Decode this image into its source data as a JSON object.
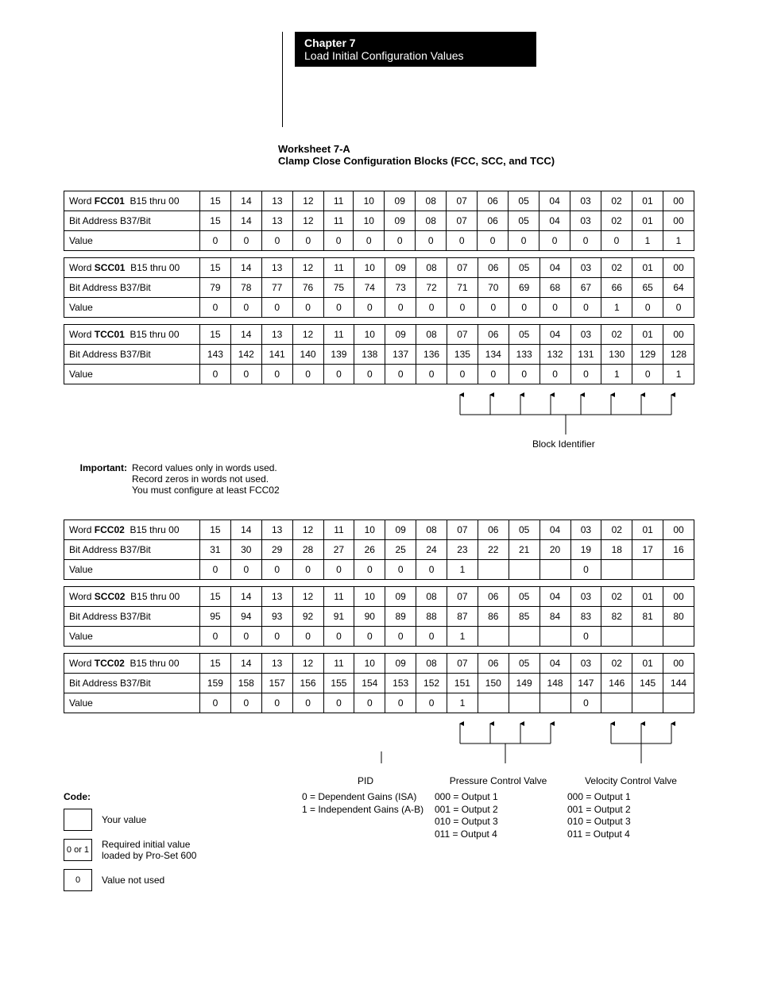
{
  "chapter": {
    "title": "Chapter 7",
    "subtitle": "Load Initial Configuration Values"
  },
  "worksheet": {
    "line1": "Worksheet 7-A",
    "line2": "Clamp Close Configuration Blocks (FCC, SCC, and TCC)"
  },
  "tables1": [
    {
      "word": "FCC01",
      "range": "B15 thru 00",
      "bits": [
        "15",
        "14",
        "13",
        "12",
        "11",
        "10",
        "09",
        "08",
        "07",
        "06",
        "05",
        "04",
        "03",
        "02",
        "01",
        "00"
      ],
      "addr": [
        "15",
        "14",
        "13",
        "12",
        "11",
        "10",
        "09",
        "08",
        "07",
        "06",
        "05",
        "04",
        "03",
        "02",
        "01",
        "00"
      ],
      "values": [
        "0",
        "0",
        "0",
        "0",
        "0",
        "0",
        "0",
        "0",
        "0",
        "0",
        "0",
        "0",
        "0",
        "0",
        "1",
        "1"
      ]
    },
    {
      "word": "SCC01",
      "range": "B15 thru 00",
      "bits": [
        "15",
        "14",
        "13",
        "12",
        "11",
        "10",
        "09",
        "08",
        "07",
        "06",
        "05",
        "04",
        "03",
        "02",
        "01",
        "00"
      ],
      "addr": [
        "79",
        "78",
        "77",
        "76",
        "75",
        "74",
        "73",
        "72",
        "71",
        "70",
        "69",
        "68",
        "67",
        "66",
        "65",
        "64"
      ],
      "values": [
        "0",
        "0",
        "0",
        "0",
        "0",
        "0",
        "0",
        "0",
        "0",
        "0",
        "0",
        "0",
        "0",
        "1",
        "0",
        "0"
      ]
    },
    {
      "word": "TCC01",
      "range": "B15 thru 00",
      "bits": [
        "15",
        "14",
        "13",
        "12",
        "11",
        "10",
        "09",
        "08",
        "07",
        "06",
        "05",
        "04",
        "03",
        "02",
        "01",
        "00"
      ],
      "addr": [
        "143",
        "142",
        "141",
        "140",
        "139",
        "138",
        "137",
        "136",
        "135",
        "134",
        "133",
        "132",
        "131",
        "130",
        "129",
        "128"
      ],
      "values": [
        "0",
        "0",
        "0",
        "0",
        "0",
        "0",
        "0",
        "0",
        "0",
        "0",
        "0",
        "0",
        "0",
        "1",
        "0",
        "1"
      ]
    }
  ],
  "important": {
    "label": "Important:",
    "l1": "Record values only in words used.",
    "l2": "Record zeros in words not used.",
    "l3": "You must configure at least FCC02"
  },
  "block_identifier": "Block Identifier",
  "tables2": [
    {
      "word": "FCC02",
      "range": "B15 thru 00",
      "bits": [
        "15",
        "14",
        "13",
        "12",
        "11",
        "10",
        "09",
        "08",
        "07",
        "06",
        "05",
        "04",
        "03",
        "02",
        "01",
        "00"
      ],
      "addr": [
        "31",
        "30",
        "29",
        "28",
        "27",
        "26",
        "25",
        "24",
        "23",
        "22",
        "21",
        "20",
        "19",
        "18",
        "17",
        "16"
      ],
      "values": [
        "0",
        "0",
        "0",
        "0",
        "0",
        "0",
        "0",
        "0",
        "1",
        "",
        "",
        "",
        "0",
        "",
        "",
        ""
      ]
    },
    {
      "word": "SCC02",
      "range": "B15 thru 00",
      "bits": [
        "15",
        "14",
        "13",
        "12",
        "11",
        "10",
        "09",
        "08",
        "07",
        "06",
        "05",
        "04",
        "03",
        "02",
        "01",
        "00"
      ],
      "addr": [
        "95",
        "94",
        "93",
        "92",
        "91",
        "90",
        "89",
        "88",
        "87",
        "86",
        "85",
        "84",
        "83",
        "82",
        "81",
        "80"
      ],
      "values": [
        "0",
        "0",
        "0",
        "0",
        "0",
        "0",
        "0",
        "0",
        "1",
        "",
        "",
        "",
        "0",
        "",
        "",
        ""
      ]
    },
    {
      "word": "TCC02",
      "range": "B15 thru 00",
      "bits": [
        "15",
        "14",
        "13",
        "12",
        "11",
        "10",
        "09",
        "08",
        "07",
        "06",
        "05",
        "04",
        "03",
        "02",
        "01",
        "00"
      ],
      "addr": [
        "159",
        "158",
        "157",
        "156",
        "155",
        "154",
        "153",
        "152",
        "151",
        "150",
        "149",
        "148",
        "147",
        "146",
        "145",
        "144"
      ],
      "values": [
        "0",
        "0",
        "0",
        "0",
        "0",
        "0",
        "0",
        "0",
        "1",
        "",
        "",
        "",
        "0",
        "",
        "",
        ""
      ]
    }
  ],
  "row_labels": {
    "word": "Word",
    "bit": "Bit Address B37/Bit",
    "value": "Value"
  },
  "code": {
    "title": "Code:",
    "your_value": "Your value",
    "req1": "Required initial value",
    "req2": "loaded by Pro-Set 600",
    "req_box": "0 or 1",
    "not_used": "Value not used",
    "not_used_box": "0"
  },
  "footer": {
    "pid": {
      "title": "PID",
      "l1": "0 = Dependent Gains (ISA)",
      "l2": "1 = Independent Gains (A-B)"
    },
    "pcv": {
      "title": "Pressure Control Valve",
      "l1": "000 = Output 1",
      "l2": "001 = Output 2",
      "l3": "010 = Output 3",
      "l4": "011 = Output 4"
    },
    "vcv": {
      "title": "Velocity Control Valve",
      "l1": "000 = Output 1",
      "l2": "001 = Output 2",
      "l3": "010 = Output 3",
      "l4": "011 = Output 4"
    }
  }
}
